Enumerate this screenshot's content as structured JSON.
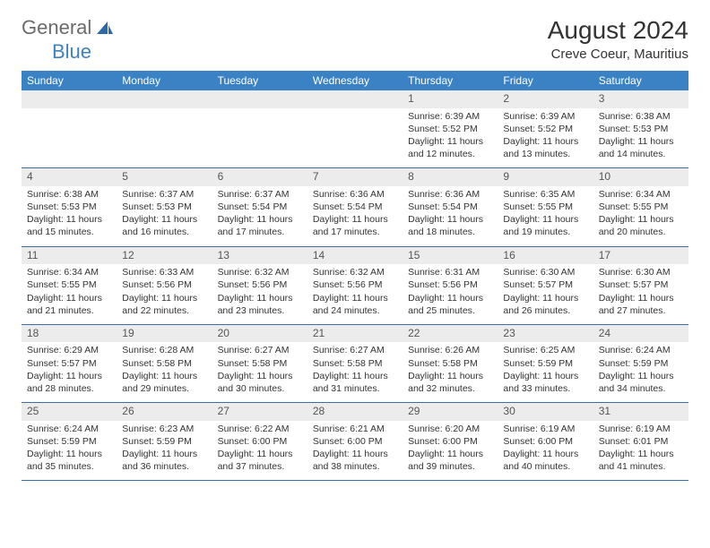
{
  "brand": {
    "part1": "General",
    "part2": "Blue"
  },
  "title": "August 2024",
  "location": "Creve Coeur, Mauritius",
  "colors": {
    "header_bg": "#3b82c4",
    "header_text": "#ffffff",
    "daynum_bg": "#ececec",
    "border": "#3b6ea5",
    "logo_gray": "#6b6b6b",
    "logo_blue": "#3b82c4"
  },
  "daysOfWeek": [
    "Sunday",
    "Monday",
    "Tuesday",
    "Wednesday",
    "Thursday",
    "Friday",
    "Saturday"
  ],
  "weeks": [
    [
      null,
      null,
      null,
      null,
      {
        "n": "1",
        "sr": "6:39 AM",
        "ss": "5:52 PM",
        "dl": "11 hours and 12 minutes."
      },
      {
        "n": "2",
        "sr": "6:39 AM",
        "ss": "5:52 PM",
        "dl": "11 hours and 13 minutes."
      },
      {
        "n": "3",
        "sr": "6:38 AM",
        "ss": "5:53 PM",
        "dl": "11 hours and 14 minutes."
      }
    ],
    [
      {
        "n": "4",
        "sr": "6:38 AM",
        "ss": "5:53 PM",
        "dl": "11 hours and 15 minutes."
      },
      {
        "n": "5",
        "sr": "6:37 AM",
        "ss": "5:53 PM",
        "dl": "11 hours and 16 minutes."
      },
      {
        "n": "6",
        "sr": "6:37 AM",
        "ss": "5:54 PM",
        "dl": "11 hours and 17 minutes."
      },
      {
        "n": "7",
        "sr": "6:36 AM",
        "ss": "5:54 PM",
        "dl": "11 hours and 17 minutes."
      },
      {
        "n": "8",
        "sr": "6:36 AM",
        "ss": "5:54 PM",
        "dl": "11 hours and 18 minutes."
      },
      {
        "n": "9",
        "sr": "6:35 AM",
        "ss": "5:55 PM",
        "dl": "11 hours and 19 minutes."
      },
      {
        "n": "10",
        "sr": "6:34 AM",
        "ss": "5:55 PM",
        "dl": "11 hours and 20 minutes."
      }
    ],
    [
      {
        "n": "11",
        "sr": "6:34 AM",
        "ss": "5:55 PM",
        "dl": "11 hours and 21 minutes."
      },
      {
        "n": "12",
        "sr": "6:33 AM",
        "ss": "5:56 PM",
        "dl": "11 hours and 22 minutes."
      },
      {
        "n": "13",
        "sr": "6:32 AM",
        "ss": "5:56 PM",
        "dl": "11 hours and 23 minutes."
      },
      {
        "n": "14",
        "sr": "6:32 AM",
        "ss": "5:56 PM",
        "dl": "11 hours and 24 minutes."
      },
      {
        "n": "15",
        "sr": "6:31 AM",
        "ss": "5:56 PM",
        "dl": "11 hours and 25 minutes."
      },
      {
        "n": "16",
        "sr": "6:30 AM",
        "ss": "5:57 PM",
        "dl": "11 hours and 26 minutes."
      },
      {
        "n": "17",
        "sr": "6:30 AM",
        "ss": "5:57 PM",
        "dl": "11 hours and 27 minutes."
      }
    ],
    [
      {
        "n": "18",
        "sr": "6:29 AM",
        "ss": "5:57 PM",
        "dl": "11 hours and 28 minutes."
      },
      {
        "n": "19",
        "sr": "6:28 AM",
        "ss": "5:58 PM",
        "dl": "11 hours and 29 minutes."
      },
      {
        "n": "20",
        "sr": "6:27 AM",
        "ss": "5:58 PM",
        "dl": "11 hours and 30 minutes."
      },
      {
        "n": "21",
        "sr": "6:27 AM",
        "ss": "5:58 PM",
        "dl": "11 hours and 31 minutes."
      },
      {
        "n": "22",
        "sr": "6:26 AM",
        "ss": "5:58 PM",
        "dl": "11 hours and 32 minutes."
      },
      {
        "n": "23",
        "sr": "6:25 AM",
        "ss": "5:59 PM",
        "dl": "11 hours and 33 minutes."
      },
      {
        "n": "24",
        "sr": "6:24 AM",
        "ss": "5:59 PM",
        "dl": "11 hours and 34 minutes."
      }
    ],
    [
      {
        "n": "25",
        "sr": "6:24 AM",
        "ss": "5:59 PM",
        "dl": "11 hours and 35 minutes."
      },
      {
        "n": "26",
        "sr": "6:23 AM",
        "ss": "5:59 PM",
        "dl": "11 hours and 36 minutes."
      },
      {
        "n": "27",
        "sr": "6:22 AM",
        "ss": "6:00 PM",
        "dl": "11 hours and 37 minutes."
      },
      {
        "n": "28",
        "sr": "6:21 AM",
        "ss": "6:00 PM",
        "dl": "11 hours and 38 minutes."
      },
      {
        "n": "29",
        "sr": "6:20 AM",
        "ss": "6:00 PM",
        "dl": "11 hours and 39 minutes."
      },
      {
        "n": "30",
        "sr": "6:19 AM",
        "ss": "6:00 PM",
        "dl": "11 hours and 40 minutes."
      },
      {
        "n": "31",
        "sr": "6:19 AM",
        "ss": "6:01 PM",
        "dl": "11 hours and 41 minutes."
      }
    ]
  ],
  "labels": {
    "sunrise": "Sunrise:",
    "sunset": "Sunset:",
    "daylight": "Daylight:"
  }
}
